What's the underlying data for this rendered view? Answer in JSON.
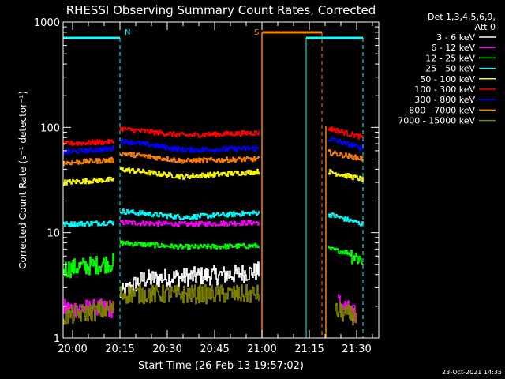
{
  "chart_data": {
    "type": "line",
    "title": "RHESSI Observing Summary Count Rates, Corrected",
    "xlabel": "Start Time (26-Feb-13 19:57:02)",
    "ylabel": "Corrected Count Rate (s⁻¹ detector⁻¹)",
    "yscale": "log",
    "ylim": [
      1,
      1000
    ],
    "xlim_minutes": [
      -3,
      97
    ],
    "x_ticks": [
      {
        "label": "20:00",
        "min": 0
      },
      {
        "label": "20:15",
        "min": 15
      },
      {
        "label": "20:30",
        "min": 30
      },
      {
        "label": "20:45",
        "min": 45
      },
      {
        "label": "21:00",
        "min": 60
      },
      {
        "label": "21:15",
        "min": 75
      },
      {
        "label": "21:30",
        "min": 90
      }
    ],
    "y_ticks": [
      {
        "label": "1",
        "value": 1
      },
      {
        "label": "10",
        "value": 10
      },
      {
        "label": "100",
        "value": 100
      },
      {
        "label": "1000",
        "value": 1000
      }
    ],
    "legend_header": [
      "Det 1,3,4,5,6,9,",
      "Att 0"
    ],
    "legend_position": "top-right, outside plot",
    "series": [
      {
        "name": "3 - 6 keV",
        "color": "#ffffff",
        "segments": [
          [
            [
              15,
              2.6
            ],
            [
              22,
              3.6
            ],
            [
              35,
              3.8
            ],
            [
              50,
              4.0
            ],
            [
              59,
              4.3
            ]
          ]
        ]
      },
      {
        "name": "6 - 12 keV",
        "color": "#ff00ff",
        "segments": [
          [
            [
              -3,
              1.9
            ],
            [
              13,
              1.9
            ]
          ],
          [
            [
              15,
              12.5
            ],
            [
              35,
              12.0
            ],
            [
              59,
              12.5
            ]
          ],
          [
            [
              84,
              2.2
            ],
            [
              90,
              1.6
            ]
          ]
        ]
      },
      {
        "name": "12 - 25 keV",
        "color": "#00ff00",
        "segments": [
          [
            [
              -3,
              4.5
            ],
            [
              13,
              5.2
            ]
          ],
          [
            [
              15,
              8.0
            ],
            [
              35,
              7.3
            ],
            [
              59,
              7.5
            ]
          ],
          [
            [
              81,
              7.0
            ],
            [
              87,
              6.5
            ],
            [
              92,
              5.5
            ]
          ]
        ]
      },
      {
        "name": "25 - 50 keV",
        "color": "#00ffff",
        "segments": [
          [
            [
              -3,
              12
            ],
            [
              13,
              12.5
            ]
          ],
          [
            [
              15,
              16
            ],
            [
              35,
              14
            ],
            [
              59,
              15.5
            ]
          ],
          [
            [
              81,
              15
            ],
            [
              92,
              12
            ]
          ]
        ]
      },
      {
        "name": "50 - 100 keV",
        "color": "#ffff00",
        "segments": [
          [
            [
              -3,
              30
            ],
            [
              13,
              32
            ]
          ],
          [
            [
              15,
              40
            ],
            [
              35,
              34
            ],
            [
              59,
              38
            ]
          ],
          [
            [
              81,
              38
            ],
            [
              92,
              32
            ]
          ]
        ]
      },
      {
        "name": "100 - 300 keV",
        "color": "#ff0000",
        "segments": [
          [
            [
              -3,
              70
            ],
            [
              13,
              73
            ]
          ],
          [
            [
              15,
              97
            ],
            [
              35,
              84
            ],
            [
              59,
              89
            ]
          ],
          [
            [
              81,
              98
            ],
            [
              92,
              80
            ]
          ]
        ]
      },
      {
        "name": "300 - 800 keV",
        "color": "#0000ff",
        "segments": [
          [
            [
              -3,
              58
            ],
            [
              13,
              63
            ]
          ],
          [
            [
              15,
              75
            ],
            [
              35,
              61
            ],
            [
              59,
              63
            ]
          ],
          [
            [
              81,
              78
            ],
            [
              92,
              63
            ]
          ]
        ]
      },
      {
        "name": "800 - 7000 keV",
        "color": "#ff8000",
        "segments": [
          [
            [
              -3,
              46
            ],
            [
              13,
              49
            ]
          ],
          [
            [
              15,
              57
            ],
            [
              35,
              48
            ],
            [
              59,
              50
            ]
          ],
          [
            [
              81,
              58
            ],
            [
              92,
              50
            ]
          ]
        ]
      },
      {
        "name": "7000 - 15000 keV",
        "color": "#808000",
        "segments": [
          [
            [
              -3,
              1.6
            ],
            [
              13,
              1.9
            ]
          ],
          [
            [
              15,
              2.6
            ],
            [
              59,
              2.6
            ]
          ],
          [
            [
              83,
              1.8
            ],
            [
              90,
              1.6
            ]
          ]
        ]
      }
    ],
    "annotations": [
      {
        "label": "N",
        "min": 15,
        "color": "#00ffff"
      },
      {
        "label": "S",
        "min": 60,
        "color": "#ff8000"
      }
    ],
    "night_bars": [
      {
        "color": "#00ffff",
        "min": [
          -3,
          15
        ]
      },
      {
        "color": "#00ffff",
        "min": [
          74,
          92
        ]
      }
    ],
    "saa_bar": {
      "color": "#ff8000",
      "min": [
        60,
        79
      ]
    },
    "timestamp": "23-Oct-2021 14:35"
  }
}
